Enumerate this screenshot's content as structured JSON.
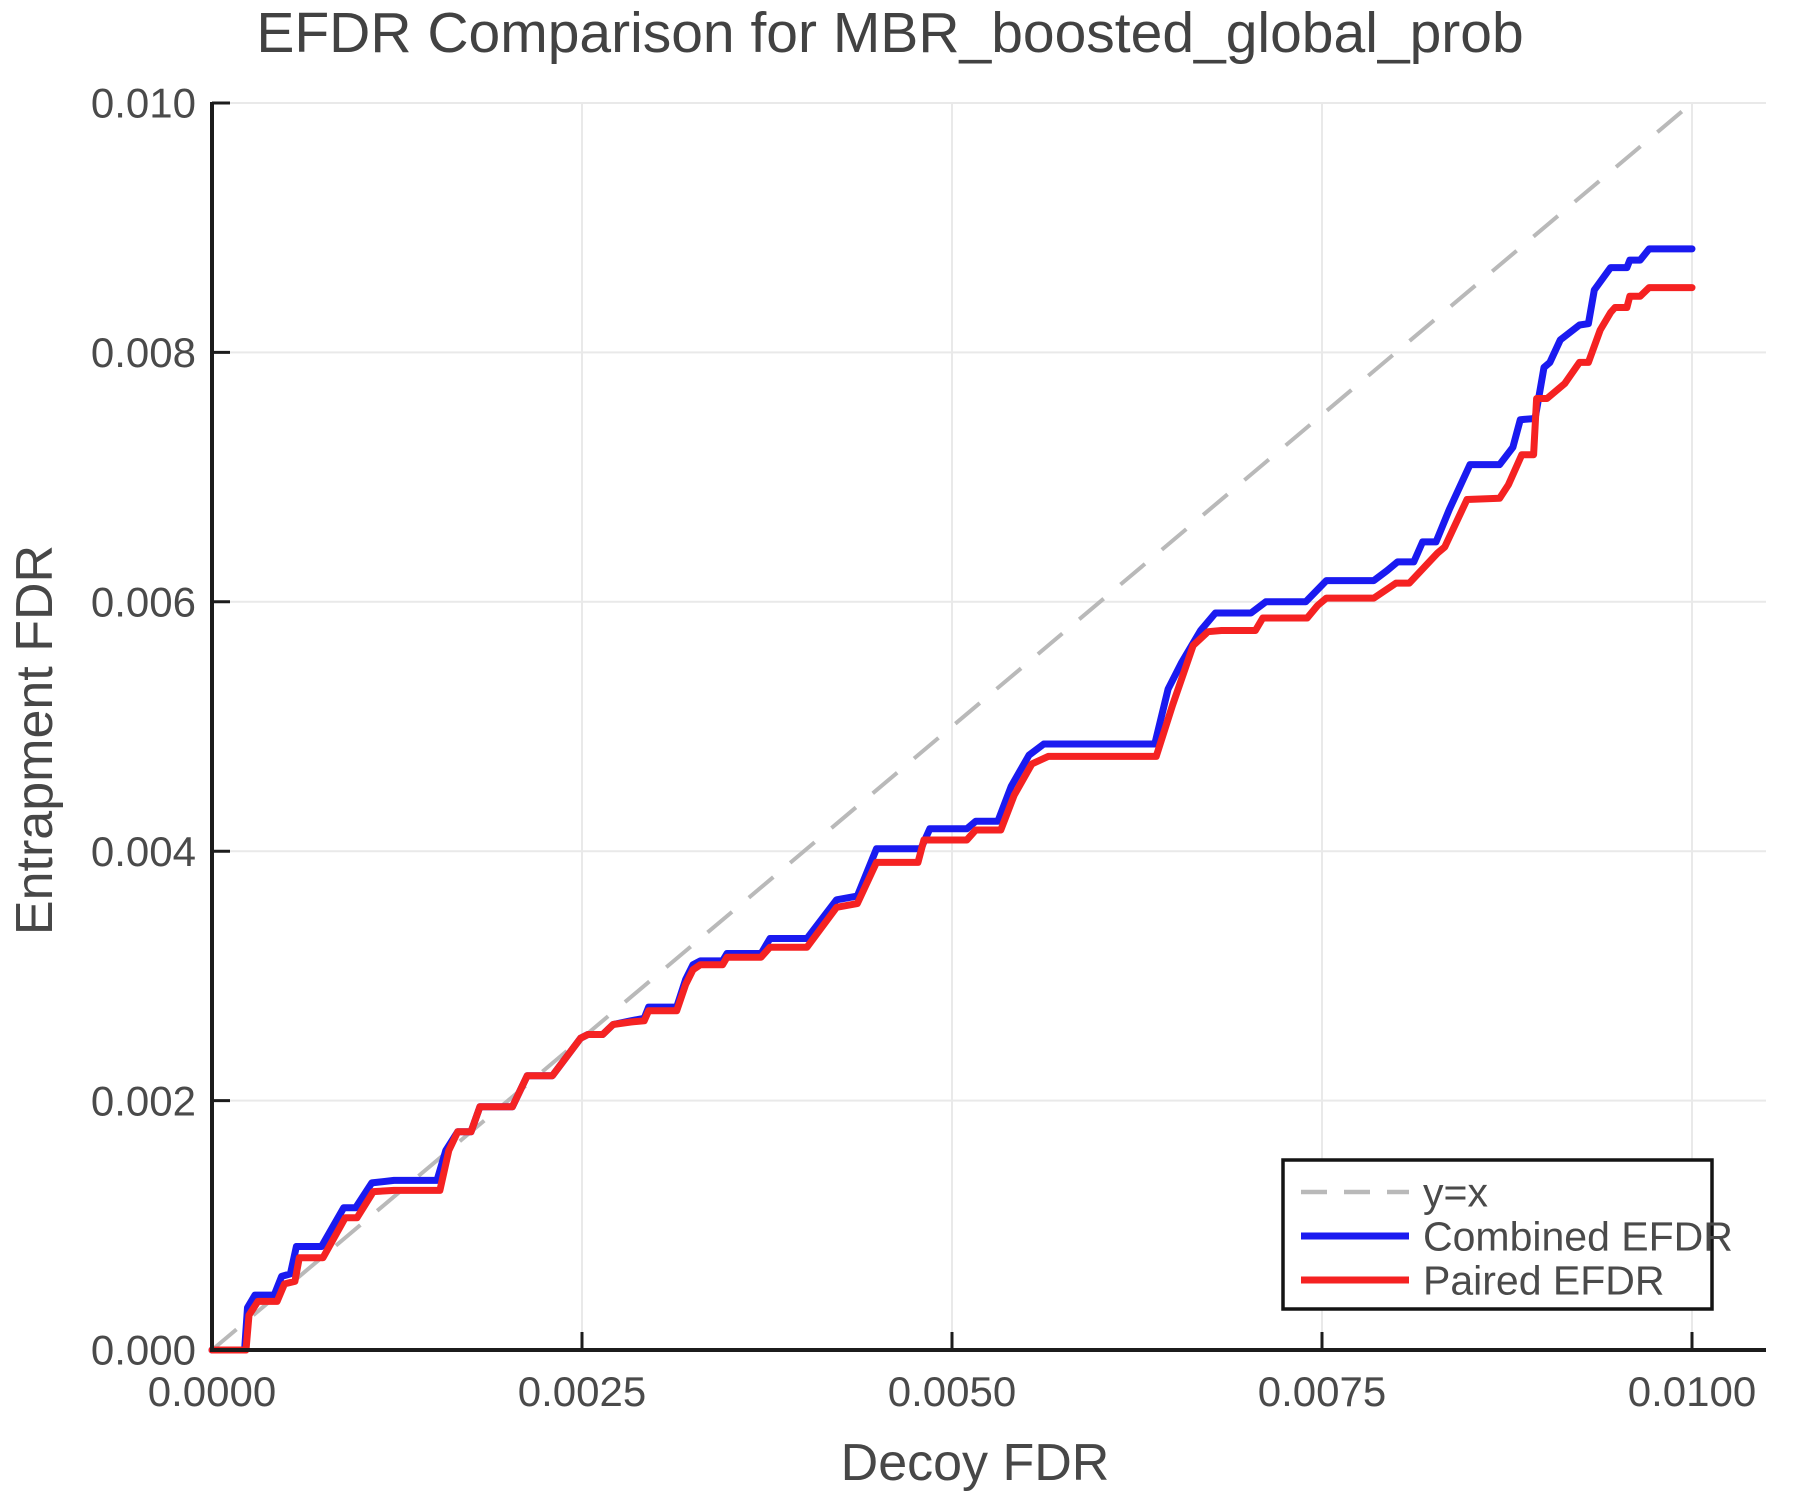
{
  "title": "EFDR Comparison for MBR_boosted_global_prob",
  "colors": {
    "combined": "#1a1af0",
    "paired": "#f52222",
    "identity": "#b9b9b9",
    "grid": "#e9e9e9",
    "axis": "#1c1c1c",
    "legend_border": "#141414",
    "background": "#ffffff"
  },
  "chart_data": {
    "type": "line",
    "title": "EFDR Comparison for MBR_boosted_global_prob",
    "xlabel": "Decoy FDR",
    "ylabel": "Entrapment FDR",
    "xlim": [
      0.0,
      0.01
    ],
    "ylim": [
      0.0,
      0.01
    ],
    "grid": true,
    "x_ticks": [
      {
        "v": 0.0,
        "label": "0.0000"
      },
      {
        "v": 0.0025,
        "label": "0.0025"
      },
      {
        "v": 0.005,
        "label": "0.0050"
      },
      {
        "v": 0.0075,
        "label": "0.0075"
      },
      {
        "v": 0.01,
        "label": "0.0100"
      }
    ],
    "y_ticks": [
      {
        "v": 0.0,
        "label": "0.000"
      },
      {
        "v": 0.002,
        "label": "0.002"
      },
      {
        "v": 0.004,
        "label": "0.004"
      },
      {
        "v": 0.006,
        "label": "0.006"
      },
      {
        "v": 0.008,
        "label": "0.008"
      },
      {
        "v": 0.01,
        "label": "0.010"
      }
    ],
    "reference_line": {
      "label": "y=x",
      "style": "dashed",
      "from": [
        0.0,
        0.0
      ],
      "to": [
        0.01,
        0.01
      ]
    },
    "legend": {
      "position": "lower right",
      "entries": [
        {
          "label": "y=x",
          "style": "dashed",
          "color_key": "identity"
        },
        {
          "label": "Combined EFDR",
          "style": "solid",
          "color_key": "combined"
        },
        {
          "label": "Paired EFDR",
          "style": "solid",
          "color_key": "paired"
        }
      ]
    },
    "series": [
      {
        "name": "Combined EFDR",
        "color_key": "combined",
        "points": [
          [
            0.0,
            0.0
          ],
          [
            0.00022,
            0.0
          ],
          [
            0.00024,
            0.00034
          ],
          [
            0.00029,
            0.00044
          ],
          [
            0.00042,
            0.00044
          ],
          [
            0.00047,
            0.00059
          ],
          [
            0.00053,
            0.00061
          ],
          [
            0.00057,
            0.00083
          ],
          [
            0.00074,
            0.00083
          ],
          [
            0.00089,
            0.00114
          ],
          [
            0.00097,
            0.00114
          ],
          [
            0.00108,
            0.00134
          ],
          [
            0.00123,
            0.00136
          ],
          [
            0.00152,
            0.00136
          ],
          [
            0.00158,
            0.0016
          ],
          [
            0.00166,
            0.00175
          ],
          [
            0.00175,
            0.00175
          ],
          [
            0.00181,
            0.00195
          ],
          [
            0.00203,
            0.00195
          ],
          [
            0.00213,
            0.0022
          ],
          [
            0.0023,
            0.0022
          ],
          [
            0.00249,
            0.0025
          ],
          [
            0.00254,
            0.00253
          ],
          [
            0.00264,
            0.00253
          ],
          [
            0.00271,
            0.00261
          ],
          [
            0.00283,
            0.00264
          ],
          [
            0.00292,
            0.00266
          ],
          [
            0.00295,
            0.00275
          ],
          [
            0.00314,
            0.00275
          ],
          [
            0.0032,
            0.00297
          ],
          [
            0.00325,
            0.00309
          ],
          [
            0.0033,
            0.00312
          ],
          [
            0.00345,
            0.00312
          ],
          [
            0.00348,
            0.00318
          ],
          [
            0.00371,
            0.00318
          ],
          [
            0.00377,
            0.0033
          ],
          [
            0.00402,
            0.0033
          ],
          [
            0.00422,
            0.00361
          ],
          [
            0.00436,
            0.00364
          ],
          [
            0.00449,
            0.00402
          ],
          [
            0.00479,
            0.00402
          ],
          [
            0.00485,
            0.00418
          ],
          [
            0.0051,
            0.00418
          ],
          [
            0.00516,
            0.00424
          ],
          [
            0.00531,
            0.00424
          ],
          [
            0.0054,
            0.00452
          ],
          [
            0.00552,
            0.00477
          ],
          [
            0.00562,
            0.00486
          ],
          [
            0.00637,
            0.00486
          ],
          [
            0.00646,
            0.0053
          ],
          [
            0.00655,
            0.00551
          ],
          [
            0.00668,
            0.00577
          ],
          [
            0.00678,
            0.00591
          ],
          [
            0.00702,
            0.00591
          ],
          [
            0.00712,
            0.006
          ],
          [
            0.00739,
            0.006
          ],
          [
            0.00753,
            0.00617
          ],
          [
            0.00785,
            0.00617
          ],
          [
            0.00794,
            0.00625
          ],
          [
            0.00801,
            0.00632
          ],
          [
            0.00812,
            0.00632
          ],
          [
            0.00818,
            0.00648
          ],
          [
            0.00827,
            0.00648
          ],
          [
            0.00836,
            0.00674
          ],
          [
            0.0085,
            0.0071
          ],
          [
            0.0087,
            0.0071
          ],
          [
            0.00879,
            0.00724
          ],
          [
            0.00884,
            0.00746
          ],
          [
            0.00894,
            0.00747
          ],
          [
            0.009,
            0.00788
          ],
          [
            0.00904,
            0.00792
          ],
          [
            0.00911,
            0.0081
          ],
          [
            0.00924,
            0.00822
          ],
          [
            0.0093,
            0.00823
          ],
          [
            0.00934,
            0.0085
          ],
          [
            0.00945,
            0.00868
          ],
          [
            0.00956,
            0.00868
          ],
          [
            0.00958,
            0.00874
          ],
          [
            0.00965,
            0.00874
          ],
          [
            0.00971,
            0.00883
          ],
          [
            0.01,
            0.00883
          ]
        ]
      },
      {
        "name": "Paired EFDR",
        "color_key": "paired",
        "points": [
          [
            0.0,
            0.0
          ],
          [
            0.00023,
            0.0
          ],
          [
            0.00025,
            0.00028
          ],
          [
            0.00031,
            0.00039
          ],
          [
            0.00044,
            0.00039
          ],
          [
            0.00049,
            0.00053
          ],
          [
            0.00056,
            0.00055
          ],
          [
            0.00059,
            0.00074
          ],
          [
            0.00075,
            0.00074
          ],
          [
            0.0009,
            0.00106
          ],
          [
            0.00098,
            0.00106
          ],
          [
            0.00109,
            0.00127
          ],
          [
            0.00123,
            0.00128
          ],
          [
            0.00154,
            0.00128
          ],
          [
            0.0016,
            0.0016
          ],
          [
            0.00166,
            0.00175
          ],
          [
            0.00175,
            0.00175
          ],
          [
            0.00181,
            0.00195
          ],
          [
            0.00203,
            0.00195
          ],
          [
            0.00213,
            0.0022
          ],
          [
            0.0023,
            0.0022
          ],
          [
            0.00249,
            0.0025
          ],
          [
            0.00254,
            0.00253
          ],
          [
            0.00264,
            0.00253
          ],
          [
            0.00271,
            0.00261
          ],
          [
            0.00283,
            0.00263
          ],
          [
            0.00292,
            0.00264
          ],
          [
            0.00295,
            0.00272
          ],
          [
            0.00314,
            0.00272
          ],
          [
            0.0032,
            0.00293
          ],
          [
            0.00325,
            0.00305
          ],
          [
            0.0033,
            0.00309
          ],
          [
            0.00345,
            0.00309
          ],
          [
            0.00348,
            0.00315
          ],
          [
            0.00371,
            0.00315
          ],
          [
            0.00377,
            0.00323
          ],
          [
            0.00402,
            0.00323
          ],
          [
            0.00422,
            0.00355
          ],
          [
            0.00436,
            0.00358
          ],
          [
            0.00449,
            0.00391
          ],
          [
            0.00477,
            0.00391
          ],
          [
            0.00481,
            0.00409
          ],
          [
            0.0051,
            0.00409
          ],
          [
            0.00516,
            0.00417
          ],
          [
            0.00533,
            0.00417
          ],
          [
            0.00542,
            0.00445
          ],
          [
            0.00554,
            0.0047
          ],
          [
            0.00565,
            0.00476
          ],
          [
            0.00638,
            0.00476
          ],
          [
            0.00649,
            0.00517
          ],
          [
            0.00663,
            0.00565
          ],
          [
            0.00673,
            0.00576
          ],
          [
            0.00682,
            0.00577
          ],
          [
            0.00705,
            0.00577
          ],
          [
            0.0071,
            0.00587
          ],
          [
            0.0074,
            0.00587
          ],
          [
            0.00747,
            0.00597
          ],
          [
            0.00753,
            0.00603
          ],
          [
            0.00785,
            0.00603
          ],
          [
            0.008,
            0.00615
          ],
          [
            0.00809,
            0.00615
          ],
          [
            0.00828,
            0.00639
          ],
          [
            0.00833,
            0.00644
          ],
          [
            0.00848,
            0.00682
          ],
          [
            0.0087,
            0.00683
          ],
          [
            0.00876,
            0.00694
          ],
          [
            0.00885,
            0.00718
          ],
          [
            0.00893,
            0.00718
          ],
          [
            0.00895,
            0.00763
          ],
          [
            0.00902,
            0.00763
          ],
          [
            0.00914,
            0.00775
          ],
          [
            0.00924,
            0.00792
          ],
          [
            0.0093,
            0.00792
          ],
          [
            0.00938,
            0.00818
          ],
          [
            0.00945,
            0.00832
          ],
          [
            0.00948,
            0.00836
          ],
          [
            0.00956,
            0.00836
          ],
          [
            0.00958,
            0.00845
          ],
          [
            0.00965,
            0.00845
          ],
          [
            0.00971,
            0.00852
          ],
          [
            0.01,
            0.00852
          ]
        ]
      }
    ]
  }
}
